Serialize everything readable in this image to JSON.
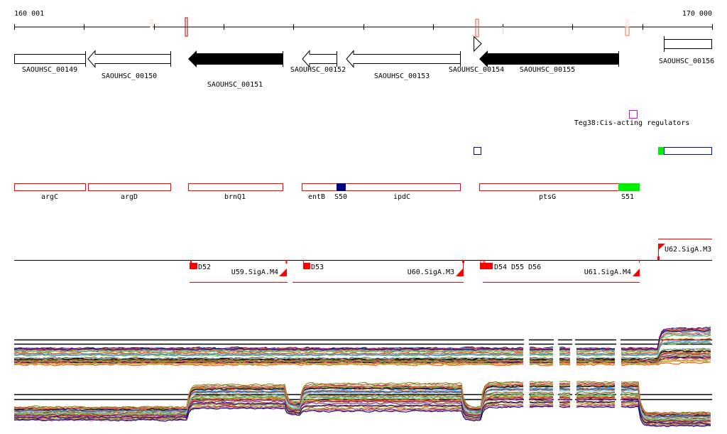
{
  "ruler": {
    "start_label": "160 001",
    "end_label": "170 000"
  },
  "genes": [
    {
      "id": "SAOUHSC_00149",
      "style": "open-box"
    },
    {
      "id": "SAOUHSC_00150",
      "style": "open-arrow-left"
    },
    {
      "id": "SAOUHSC_00151",
      "style": "filled-arrow-left"
    },
    {
      "id": "SAOUHSC_00152",
      "style": "open-arrow-left"
    },
    {
      "id": "SAOUHSC_00153",
      "style": "open-arrow-left"
    },
    {
      "id": "SAOUHSC_00154",
      "style": "open-triangle-right"
    },
    {
      "id": "SAOUHSC_00155",
      "style": "filled-arrow-left"
    },
    {
      "id": "SAOUHSC_00156",
      "style": "open-box"
    }
  ],
  "regulator": {
    "label": "Teg38:Cis-acting regulators",
    "color": "#e000e0"
  },
  "operons": [
    {
      "label": "argC"
    },
    {
      "label": "argD"
    },
    {
      "label": "brnQ1"
    },
    {
      "label": "entB"
    },
    {
      "label": "S50",
      "color": "#000080"
    },
    {
      "label": "ipdC"
    },
    {
      "label": "ptsG"
    },
    {
      "label": "S51",
      "color": "#00ee00"
    }
  ],
  "promoters": [
    {
      "label": "D52"
    },
    {
      "label": "U59.SigA.M4"
    },
    {
      "label": "D53"
    },
    {
      "label": "U60.SigA.M3"
    },
    {
      "label": "D54"
    },
    {
      "label": "D55"
    },
    {
      "label": "D56"
    },
    {
      "label": "U61.SigA.M4"
    },
    {
      "label": "U62.SigA.M3"
    }
  ],
  "colors": {
    "feature_red": "#ff0000",
    "marker_dark": "#aa0000",
    "tu_blue": "#0000cc",
    "green": "#00ee00"
  },
  "expression_palette": [
    "#000000",
    "#d2691e",
    "#ff4500",
    "#32cd32",
    "#8b008b",
    "#87ceeb",
    "#c71585",
    "#808000",
    "#b0a0c0",
    "#1e90ff",
    "#8b4513",
    "#ff7f50",
    "#9acd32",
    "#000080",
    "#daa520",
    "#a0522d"
  ]
}
